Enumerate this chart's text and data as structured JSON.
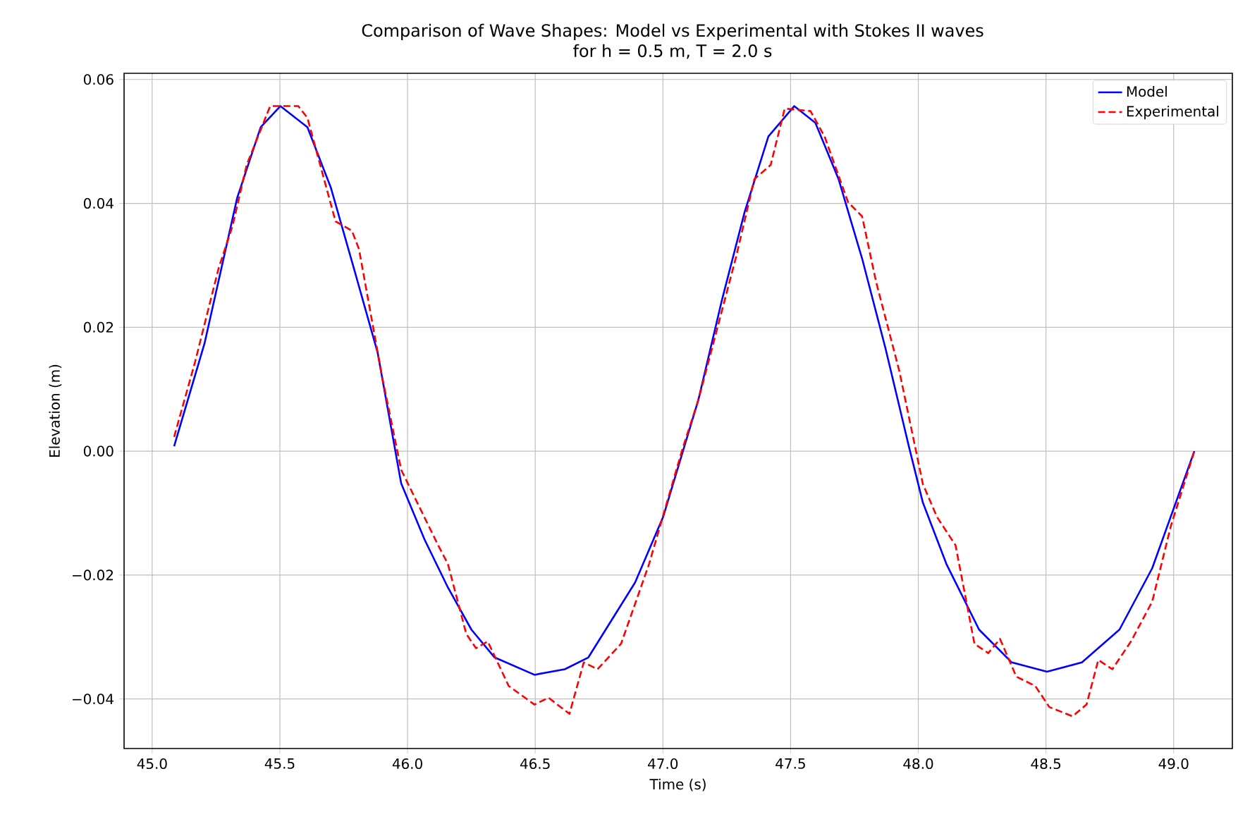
{
  "chart_data": {
    "type": "line",
    "title": "Comparison of Wave Shapes: Model vs Experimental with Stokes II waves\nfor h = 0.5 m, T = 2.0 s",
    "xlabel": "Time (s)",
    "ylabel": "Elevation (m)",
    "xlim": [
      44.89,
      49.23
    ],
    "ylim": [
      -0.048,
      0.061
    ],
    "xticks": [
      {
        "value": 45.0,
        "label": "45.0"
      },
      {
        "value": 45.5,
        "label": "45.5"
      },
      {
        "value": 46.0,
        "label": "46.0"
      },
      {
        "value": 46.5,
        "label": "46.5"
      },
      {
        "value": 47.0,
        "label": "47.0"
      },
      {
        "value": 47.5,
        "label": "47.5"
      },
      {
        "value": 48.0,
        "label": "48.0"
      },
      {
        "value": 48.5,
        "label": "48.5"
      },
      {
        "value": 49.0,
        "label": "49.0"
      }
    ],
    "yticks": [
      {
        "value": -0.04,
        "label": "−0.04"
      },
      {
        "value": -0.02,
        "label": "−0.02"
      },
      {
        "value": 0,
        "label": "0.00"
      },
      {
        "value": 0.02,
        "label": "0.02"
      },
      {
        "value": 0.04,
        "label": "0.04"
      },
      {
        "value": 0.06,
        "label": "0.06"
      }
    ],
    "grid": true,
    "legend": "top right",
    "series": [
      {
        "name": "Model",
        "color": "#0000ff",
        "line_style": "solid",
        "x": [
          45.086,
          45.205,
          45.333,
          45.425,
          45.502,
          45.608,
          45.7,
          45.79,
          45.883,
          45.975,
          46.067,
          46.158,
          46.25,
          46.341,
          46.497,
          46.616,
          46.708,
          46.891,
          47.001,
          47.139,
          47.23,
          47.32,
          47.413,
          47.514,
          47.597,
          47.688,
          47.78,
          47.871,
          47.963,
          48.018,
          48.11,
          48.238,
          48.366,
          48.504,
          48.641,
          48.788,
          48.916,
          49.081
        ],
        "values": [
          0.0008,
          0.0174,
          0.0409,
          0.0523,
          0.0557,
          0.0523,
          0.0425,
          0.0295,
          0.0159,
          -0.0052,
          -0.0143,
          -0.022,
          -0.0288,
          -0.0333,
          -0.0361,
          -0.0352,
          -0.0333,
          -0.0212,
          -0.0106,
          0.0083,
          0.0242,
          0.0386,
          0.0508,
          0.0557,
          0.053,
          0.0439,
          0.0311,
          0.0167,
          0.0008,
          -0.0083,
          -0.0182,
          -0.0288,
          -0.0341,
          -0.0356,
          -0.0341,
          -0.0288,
          -0.0189,
          0.0
        ]
      },
      {
        "name": "Experimental",
        "color": "#ff0000",
        "line_style": "dashed",
        "x": [
          45.086,
          45.168,
          45.26,
          45.315,
          45.37,
          45.462,
          45.572,
          45.608,
          45.718,
          45.782,
          45.81,
          45.9,
          45.975,
          46.12,
          46.158,
          46.23,
          46.268,
          46.314,
          46.396,
          46.497,
          46.552,
          46.634,
          46.69,
          46.744,
          46.836,
          46.946,
          47.074,
          47.139,
          47.285,
          47.358,
          47.422,
          47.477,
          47.578,
          47.633,
          47.725,
          47.78,
          47.835,
          47.926,
          48.018,
          48.073,
          48.146,
          48.22,
          48.274,
          48.32,
          48.384,
          48.458,
          48.513,
          48.604,
          48.659,
          48.705,
          48.76,
          48.833,
          48.916,
          48.989,
          49.081
        ],
        "values": [
          0.0023,
          0.0144,
          0.0295,
          0.0364,
          0.0462,
          0.0557,
          0.0557,
          0.0538,
          0.0371,
          0.0356,
          0.0326,
          0.0121,
          -0.003,
          -0.0152,
          -0.0182,
          -0.0295,
          -0.0318,
          -0.0307,
          -0.0379,
          -0.0409,
          -0.0398,
          -0.0424,
          -0.0341,
          -0.0352,
          -0.0311,
          -0.0182,
          0.0,
          0.0083,
          0.0311,
          0.0439,
          0.0462,
          0.0553,
          0.0549,
          0.0508,
          0.0402,
          0.0379,
          0.0273,
          0.0129,
          -0.0053,
          -0.0106,
          -0.0152,
          -0.0311,
          -0.0326,
          -0.0303,
          -0.0364,
          -0.0379,
          -0.0413,
          -0.0428,
          -0.0409,
          -0.0337,
          -0.0352,
          -0.0307,
          -0.0243,
          -0.0121,
          0.0
        ]
      }
    ]
  }
}
